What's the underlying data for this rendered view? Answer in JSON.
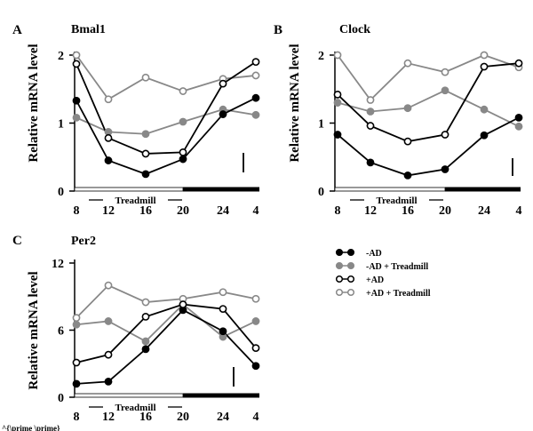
{
  "figure": {
    "stray_text": "^{\\prime \\prime}",
    "treadmill_label": "Treadmill",
    "x_ticks": [
      "8",
      "12",
      "16",
      "20",
      "24",
      "4"
    ]
  },
  "legend": {
    "items": [
      {
        "label": "-AD",
        "color": "#000000",
        "fill": "#000000"
      },
      {
        "label": "-AD + Treadmill",
        "color": "#888888",
        "fill": "#888888"
      },
      {
        "label": "+AD",
        "color": "#000000",
        "fill": "#ffffff"
      },
      {
        "label": "+AD + Treadmill",
        "color": "#888888",
        "fill": "#ffffff"
      }
    ]
  },
  "colors": {
    "dark": "#000000",
    "gray": "#888888",
    "white": "#ffffff"
  },
  "chart_data": [
    {
      "type": "line",
      "panel_letter": "A",
      "title": "Bmal1",
      "ylabel": "Relative mRNA level",
      "x": [
        "8",
        "12",
        "16",
        "20",
        "24",
        "4"
      ],
      "yticks": [
        "0",
        "1",
        "2"
      ],
      "ylim": [
        0,
        2
      ],
      "series": [
        {
          "name": "-AD",
          "values": [
            1.33,
            0.45,
            0.25,
            0.47,
            1.13,
            1.37
          ]
        },
        {
          "name": "-AD + Treadmill",
          "values": [
            1.08,
            0.87,
            0.84,
            1.02,
            1.2,
            1.12
          ]
        },
        {
          "name": "+AD",
          "values": [
            1.87,
            0.78,
            0.55,
            0.57,
            1.58,
            1.9
          ]
        },
        {
          "name": "+AD + Treadmill",
          "values": [
            2.0,
            1.35,
            1.67,
            1.47,
            1.65,
            1.7
          ]
        }
      ]
    },
    {
      "type": "line",
      "panel_letter": "B",
      "title": "Clock",
      "ylabel": "Relative mRNA level",
      "x": [
        "8",
        "12",
        "16",
        "20",
        "24",
        "4"
      ],
      "yticks": [
        "0",
        "1",
        "2"
      ],
      "ylim": [
        0,
        2
      ],
      "series": [
        {
          "name": "-AD",
          "values": [
            0.83,
            0.42,
            0.23,
            0.32,
            0.82,
            1.08
          ]
        },
        {
          "name": "-AD + Treadmill",
          "values": [
            1.3,
            1.17,
            1.22,
            1.48,
            1.2,
            0.95
          ]
        },
        {
          "name": "+AD",
          "values": [
            1.42,
            0.96,
            0.73,
            0.83,
            1.83,
            1.88
          ]
        },
        {
          "name": "+AD + Treadmill",
          "values": [
            2.0,
            1.34,
            1.88,
            1.75,
            2.0,
            1.82
          ]
        }
      ]
    },
    {
      "type": "line",
      "panel_letter": "C",
      "title": "Per2",
      "ylabel": "Relative mRNA level",
      "x": [
        "8",
        "12",
        "16",
        "20",
        "24",
        "4"
      ],
      "yticks": [
        "0",
        "6",
        "12"
      ],
      "ylim": [
        0,
        12
      ],
      "series": [
        {
          "name": "-AD",
          "values": [
            1.2,
            1.4,
            4.3,
            7.8,
            5.9,
            2.8
          ]
        },
        {
          "name": "-AD + Treadmill",
          "values": [
            6.5,
            6.8,
            5.0,
            8.3,
            5.4,
            6.8
          ]
        },
        {
          "name": "+AD",
          "values": [
            3.1,
            3.8,
            7.2,
            8.3,
            7.9,
            4.4
          ]
        },
        {
          "name": "+AD + Treadmill",
          "values": [
            7.1,
            10.0,
            8.5,
            8.8,
            9.4,
            8.8
          ]
        }
      ]
    }
  ]
}
